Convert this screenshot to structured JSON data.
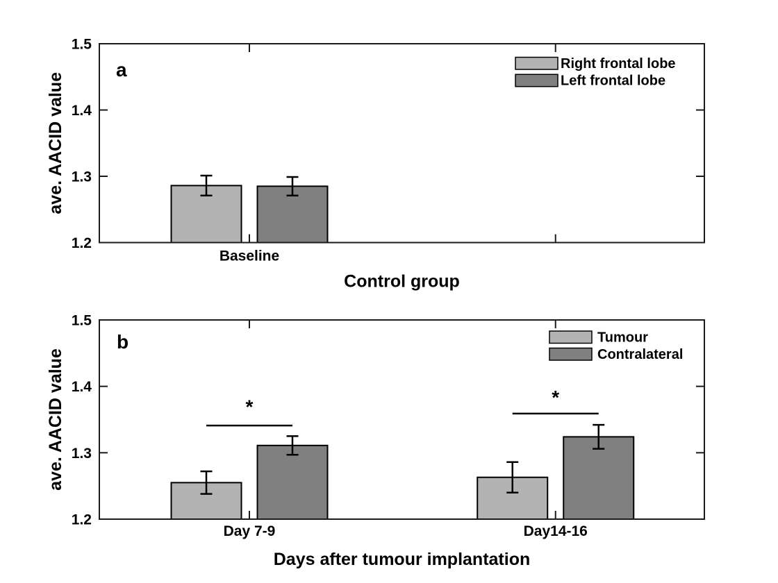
{
  "figure": {
    "background": "#ffffff",
    "axis_color": "#1a1a1a",
    "bar_edge_color": "#000000",
    "error_bar_color": "#000000"
  },
  "chart_data": [
    {
      "type": "bar",
      "panel_label": "a",
      "xlabel": "Control group",
      "ylabel": "ave. AACID value",
      "ylim": [
        1.2,
        1.5
      ],
      "yticks": [
        1.2,
        1.3,
        1.4,
        1.5
      ],
      "categories": [
        "Baseline",
        ""
      ],
      "grid": false,
      "legend_position": "upper-right",
      "series": [
        {
          "name": "Right frontal lobe",
          "color": "#b3b3b3",
          "values": [
            1.286,
            null
          ],
          "errors": [
            0.015,
            null
          ]
        },
        {
          "name": "Left frontal lobe",
          "color": "#808080",
          "values": [
            1.285,
            null
          ],
          "errors": [
            0.014,
            null
          ]
        }
      ],
      "significance": []
    },
    {
      "type": "bar",
      "panel_label": "b",
      "xlabel": "Days after tumour implantation",
      "ylabel": "ave. AACID value",
      "ylim": [
        1.2,
        1.5
      ],
      "yticks": [
        1.2,
        1.3,
        1.4,
        1.5
      ],
      "categories": [
        "Day 7-9",
        "Day14-16"
      ],
      "grid": false,
      "legend_position": "upper-right",
      "series": [
        {
          "name": "Tumour",
          "color": "#b3b3b3",
          "values": [
            1.255,
            1.263
          ],
          "errors": [
            0.017,
            0.023
          ]
        },
        {
          "name": "Contralateral",
          "color": "#808080",
          "values": [
            1.311,
            1.324
          ],
          "errors": [
            0.014,
            0.018
          ]
        }
      ],
      "significance": [
        {
          "category": 0,
          "line_y": 1.341,
          "star": "*",
          "star_y": 1.374
        },
        {
          "category": 1,
          "line_y": 1.359,
          "star": "*",
          "star_y": 1.388
        }
      ]
    }
  ]
}
